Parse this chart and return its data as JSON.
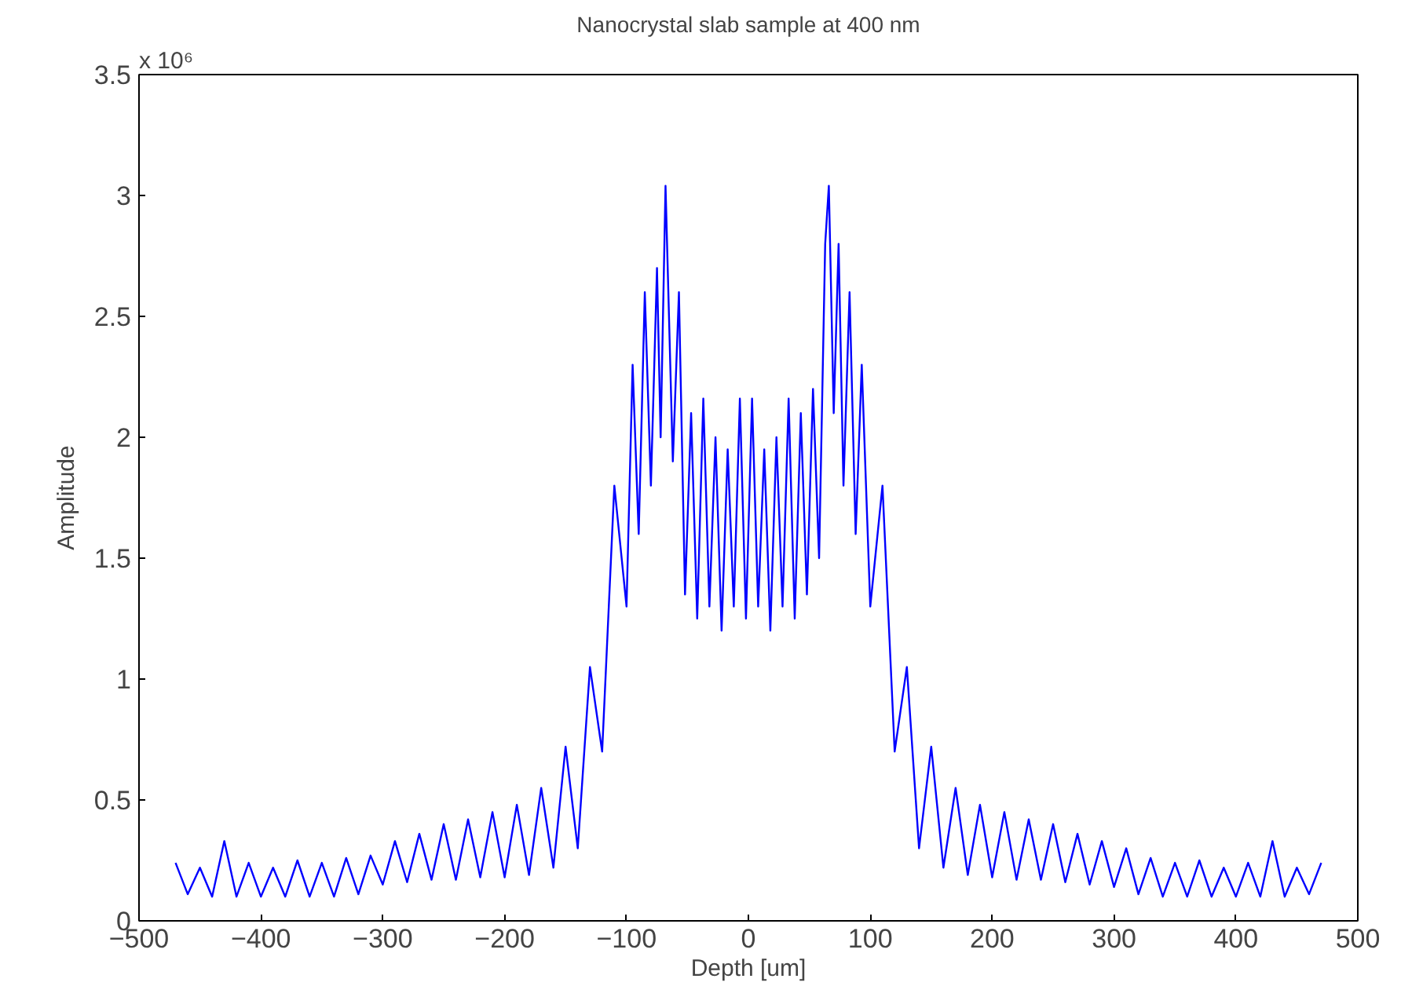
{
  "chart_data": {
    "type": "line",
    "title": "Nanocrystal slab sample at 400 nm",
    "xlabel": "Depth [um]",
    "ylabel": "Amplitude",
    "annotations": [
      "x 10⁶"
    ],
    "xlim": [
      -500,
      500
    ],
    "xticks": [
      -500,
      -400,
      -300,
      -200,
      -100,
      0,
      100,
      200,
      300,
      400,
      500
    ],
    "ylim": [
      0,
      3.5
    ],
    "yticks": [
      0,
      0.5,
      1,
      1.5,
      2,
      2.5,
      3,
      3.5
    ],
    "grid": false,
    "marker": "none",
    "line_style": "solid",
    "series": [
      {
        "color": "#0000ff",
        "x": [
          -470,
          -460,
          -450,
          -440,
          -430,
          -420,
          -410,
          -400,
          -390,
          -380,
          -370,
          -360,
          -350,
          -340,
          -330,
          -320,
          -310,
          -300,
          -290,
          -280,
          -270,
          -260,
          -250,
          -240,
          -230,
          -220,
          -210,
          -200,
          -190,
          -180,
          -170,
          -160,
          -150,
          -140,
          -130,
          -120,
          -110,
          -100,
          -95,
          -90,
          -85,
          -80,
          -75,
          -72,
          -68,
          -62,
          -57,
          -52,
          -47,
          -42,
          -37,
          -32,
          -27,
          -22,
          -17,
          -12,
          -7,
          -2,
          3,
          8,
          13,
          18,
          23,
          28,
          33,
          38,
          43,
          48,
          53,
          58,
          63,
          66,
          70,
          74,
          78,
          83,
          88,
          93,
          100,
          110,
          120,
          130,
          140,
          150,
          160,
          170,
          180,
          190,
          200,
          210,
          220,
          230,
          240,
          250,
          260,
          270,
          280,
          290,
          300,
          310,
          320,
          330,
          340,
          350,
          360,
          370,
          380,
          390,
          400,
          410,
          420,
          430,
          440,
          450,
          460,
          470
        ],
        "values": [
          0.24,
          0.11,
          0.22,
          0.1,
          0.33,
          0.1,
          0.24,
          0.1,
          0.22,
          0.1,
          0.25,
          0.1,
          0.24,
          0.1,
          0.26,
          0.11,
          0.27,
          0.15,
          0.33,
          0.16,
          0.36,
          0.17,
          0.4,
          0.17,
          0.42,
          0.18,
          0.45,
          0.18,
          0.48,
          0.19,
          0.55,
          0.22,
          0.72,
          0.3,
          1.05,
          0.7,
          1.8,
          1.3,
          2.3,
          1.6,
          2.6,
          1.8,
          2.7,
          2.0,
          3.04,
          1.9,
          2.6,
          1.35,
          2.1,
          1.25,
          2.16,
          1.3,
          2.0,
          1.2,
          1.95,
          1.3,
          2.16,
          1.25,
          2.16,
          1.3,
          1.95,
          1.2,
          2.0,
          1.3,
          2.16,
          1.25,
          2.1,
          1.35,
          2.2,
          1.5,
          2.8,
          3.04,
          2.1,
          2.8,
          1.8,
          2.6,
          1.6,
          2.3,
          1.3,
          1.8,
          0.7,
          1.05,
          0.3,
          0.72,
          0.22,
          0.55,
          0.19,
          0.48,
          0.18,
          0.45,
          0.17,
          0.42,
          0.17,
          0.4,
          0.16,
          0.36,
          0.15,
          0.33,
          0.14,
          0.3,
          0.11,
          0.26,
          0.1,
          0.24,
          0.1,
          0.25,
          0.1,
          0.22,
          0.1,
          0.24,
          0.1,
          0.33,
          0.1,
          0.22,
          0.11,
          0.24
        ]
      }
    ]
  }
}
